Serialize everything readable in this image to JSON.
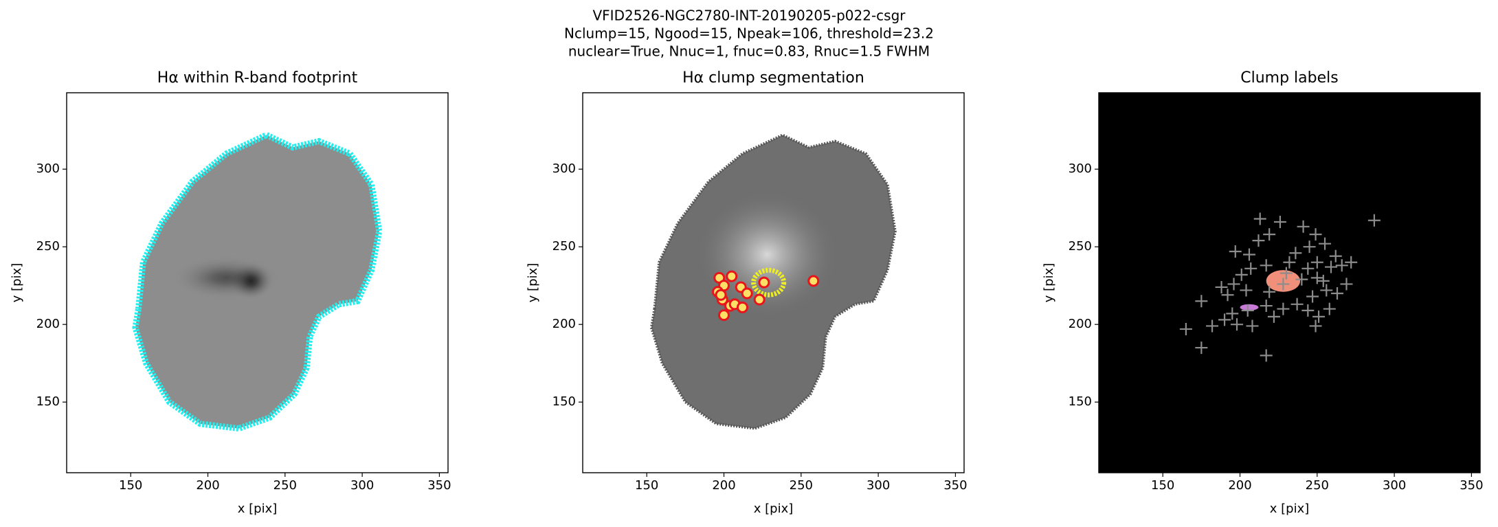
{
  "title": [
    "VFID2526-NGC2780-INT-20190205-p022-csgr",
    "Nclump=15, Ngood=15, Npeak=106, threshold=23.2",
    "nuclear=True, Nnuc=1, fnuc=0.83, Rnuc=1.5 FWHM"
  ],
  "chart_data": [
    {
      "type": "image",
      "title": "Hα within R-band footprint",
      "xlabel": "x [pix]",
      "ylabel": "y [pix]",
      "xlim": [
        108.5,
        355.6
      ],
      "ylim": [
        104.5,
        349.2
      ],
      "xticks": [
        150,
        200,
        250,
        300,
        350
      ],
      "yticks": [
        150,
        200,
        250,
        300
      ]
    },
    {
      "type": "scatter",
      "title": "Hα clump segmentation",
      "xlabel": "x [pix]",
      "ylabel": "y [pix]",
      "xlim": [
        108.5,
        355.6
      ],
      "ylim": [
        104.5,
        349.2
      ],
      "xticks": [
        150,
        200,
        250,
        300,
        350
      ],
      "yticks": [
        150,
        200,
        250,
        300
      ],
      "color": "#e8141b",
      "x": [
        197,
        205,
        200,
        196,
        199,
        204,
        200,
        207,
        211,
        212,
        223,
        226,
        258,
        215,
        198
      ],
      "y": [
        230,
        231,
        225,
        221,
        216,
        212,
        206,
        213,
        224,
        211,
        216,
        227,
        228,
        220,
        219
      ]
    },
    {
      "type": "scatter",
      "title": "Clump labels",
      "xlabel": "x [pix]",
      "ylabel": "y [pix]",
      "xlim": [
        108.5,
        355.6
      ],
      "ylim": [
        104.5,
        349.2
      ],
      "xticks": [
        150,
        200,
        250,
        300,
        350
      ],
      "yticks": [
        150,
        200,
        250,
        300
      ],
      "color": "#8c8c8c",
      "x": [
        287,
        213,
        226,
        241,
        219,
        212,
        197,
        206,
        249,
        255,
        245,
        236,
        262,
        250,
        266,
        272,
        259,
        244,
        232,
        217,
        207,
        201,
        196,
        188,
        192,
        204,
        219,
        228,
        240,
        250,
        256,
        263,
        269,
        247,
        237,
        228,
        217,
        205,
        195,
        190,
        198,
        208,
        222,
        244,
        251,
        258,
        249,
        175,
        165,
        175,
        217,
        254,
        230,
        182
      ],
      "y": [
        267,
        268,
        266,
        263,
        258,
        254,
        247,
        245,
        258,
        252,
        250,
        246,
        244,
        240,
        238,
        240,
        237,
        236,
        240,
        238,
        236,
        232,
        226,
        224,
        219,
        222,
        221,
        226,
        229,
        230,
        222,
        220,
        226,
        218,
        213,
        210,
        212,
        209,
        207,
        203,
        200,
        199,
        205,
        209,
        205,
        210,
        199,
        215,
        197,
        185,
        180,
        228,
        233,
        199
      ]
    }
  ]
}
